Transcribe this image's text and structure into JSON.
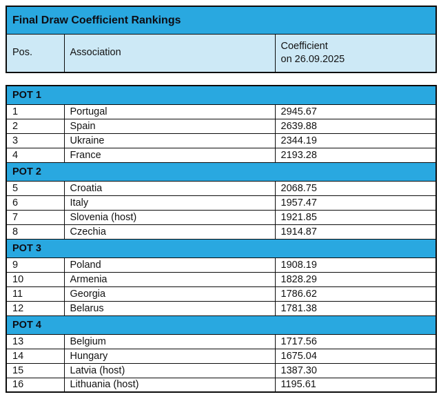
{
  "title_banner": "Final Draw Coefficient Rankings",
  "columns": {
    "pos": "Pos.",
    "association": "Association",
    "coefficient_line1": "Coefficient",
    "coefficient_line2": "on 26.09.2025"
  },
  "colors": {
    "banner_blue": "#29a8e0",
    "header_light_blue": "#cde9f6",
    "border_black": "#0a0a0a",
    "text_dark": "#121212"
  },
  "pots": [
    {
      "label": "POT 1",
      "rows": [
        {
          "pos": "1",
          "association": "Portugal",
          "coefficient": "2945.67"
        },
        {
          "pos": "2",
          "association": "Spain",
          "coefficient": "2639.88"
        },
        {
          "pos": "3",
          "association": "Ukraine",
          "coefficient": "2344.19"
        },
        {
          "pos": "4",
          "association": "France",
          "coefficient": "2193.28"
        }
      ]
    },
    {
      "label": "POT 2",
      "rows": [
        {
          "pos": "5",
          "association": "Croatia",
          "coefficient": "2068.75"
        },
        {
          "pos": "6",
          "association": "Italy",
          "coefficient": "1957.47"
        },
        {
          "pos": "7",
          "association": "Slovenia (host)",
          "coefficient": "1921.85"
        },
        {
          "pos": "8",
          "association": "Czechia",
          "coefficient": "1914.87"
        }
      ]
    },
    {
      "label": "POT 3",
      "rows": [
        {
          "pos": "9",
          "association": "Poland",
          "coefficient": "1908.19"
        },
        {
          "pos": "10",
          "association": "Armenia",
          "coefficient": "1828.29"
        },
        {
          "pos": "11",
          "association": "Georgia",
          "coefficient": "1786.62"
        },
        {
          "pos": "12",
          "association": "Belarus",
          "coefficient": "1781.38"
        }
      ]
    },
    {
      "label": "POT 4",
      "rows": [
        {
          "pos": "13",
          "association": "Belgium",
          "coefficient": "1717.56"
        },
        {
          "pos": "14",
          "association": "Hungary",
          "coefficient": "1675.04"
        },
        {
          "pos": "15",
          "association": "Latvia (host)",
          "coefficient": "1387.30"
        },
        {
          "pos": "16",
          "association": "Lithuania (host)",
          "coefficient": "1195.61"
        }
      ]
    }
  ]
}
